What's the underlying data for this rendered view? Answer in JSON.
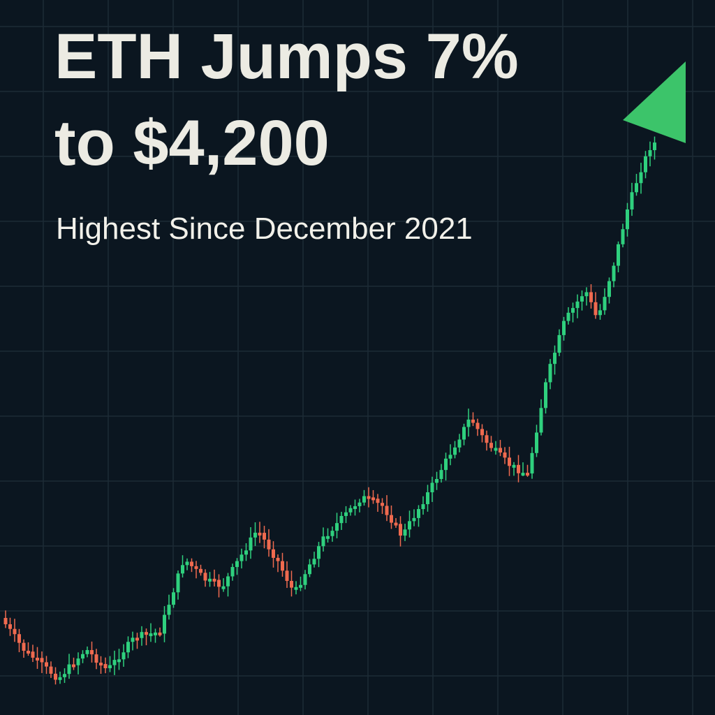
{
  "header": {
    "title": [
      "ETH Jumps 7%",
      "to $4,200"
    ],
    "subtitle": "Highest Since December 2021"
  }
}
